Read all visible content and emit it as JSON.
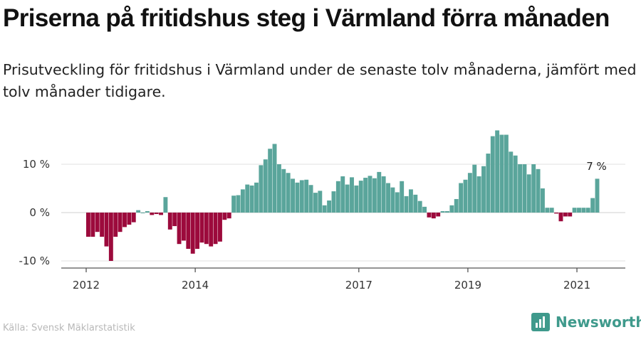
{
  "header": {
    "title": "Priserna på fritidshus steg i Värmland förra månaden",
    "subtitle": "Prisutveckling för fritidshus i Värmland under de senaste tolv månaderna, jämfört med tolv månader tidigare."
  },
  "footer": {
    "source": "Källa: Svensk Mäklarstatistik",
    "brand": "Newsworthy"
  },
  "colors": {
    "positive": "#5aa59b",
    "negative": "#9c0a3c",
    "brand": "#3f9a8c",
    "axis": "#555555",
    "gridline": "#e0e0e0"
  },
  "chart_data": {
    "type": "bar",
    "title": "Priserna på fritidshus steg i Värmland förra månaden",
    "ylabel": "",
    "xlabel": "",
    "ylim": [
      -12,
      18
    ],
    "yticks": [
      {
        "value": 10,
        "label": "10 %"
      },
      {
        "value": 0,
        "label": "0 %"
      },
      {
        "value": -10,
        "label": "-10 %"
      }
    ],
    "xticks": [
      "2012",
      "2014",
      "2017",
      "2019",
      "2021"
    ],
    "series": [
      {
        "start": "2012-01",
        "values": [
          -5,
          -5,
          -4,
          -5,
          -7,
          -10,
          -5,
          -4,
          -3,
          -2.5,
          -2,
          0.5,
          0,
          0.3,
          -0.5,
          -0.3,
          -0.5,
          3.2,
          -3.5,
          -2.8,
          -6.5,
          -5.8,
          -7.5,
          -8.5,
          -7.5,
          -6.2,
          -6.5,
          -7,
          -6.5,
          -6,
          -1.5,
          -1.2,
          3.5,
          3.6,
          4.8,
          5.8,
          5.6,
          6.2,
          9.8,
          11,
          13.2,
          14.2,
          10,
          9,
          8.2,
          7,
          6.2,
          6.7,
          6.8,
          5.7,
          4.1,
          4.5,
          1.5,
          2.5,
          4.4,
          6.5,
          7.5,
          5.8,
          7.3,
          5.6,
          6.6,
          7.2,
          7.6,
          7.1,
          8.4,
          7.5,
          6.1,
          5.2,
          4.2,
          6.5,
          3.4,
          4.8,
          3.7,
          2.4,
          1.2,
          -1,
          -1.2,
          -0.8,
          0.3,
          0.3,
          1.5,
          2.8,
          6.1,
          6.8,
          8.2,
          9.9,
          7.5,
          9.6,
          12.2,
          15.8,
          17,
          16.1,
          16.1,
          12.6,
          11.8,
          10,
          10,
          7.9,
          10,
          9,
          5,
          1,
          1,
          -0.2,
          -1.8,
          -0.8,
          -0.8,
          1,
          1,
          1,
          1,
          3,
          7
        ]
      }
    ],
    "annotations": [
      {
        "text": "7 %"
      }
    ]
  }
}
